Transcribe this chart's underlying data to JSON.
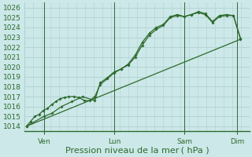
{
  "background_color": "#cce8e8",
  "plot_bg_color": "#cce8e8",
  "grid_color_h": "#aacccc",
  "grid_color_v": "#b8d4d4",
  "line_color": "#2d6a2d",
  "marker_color": "#2d6a2d",
  "vline_color": "#336633",
  "xlabel": "Pression niveau de la mer ( hPa )",
  "xlabel_color": "#2d6a2d",
  "tick_color": "#2d6a2d",
  "ylim": [
    1013.5,
    1026.5
  ],
  "yticks": [
    1014,
    1015,
    1016,
    1017,
    1018,
    1019,
    1020,
    1021,
    1022,
    1023,
    1024,
    1025,
    1026
  ],
  "xtick_labels": [
    "Ven",
    "Lun",
    "Sam",
    "Dim"
  ],
  "xtick_positions": [
    0.5,
    2.5,
    4.5,
    6.0
  ],
  "x_vlines": [
    0.5,
    2.5,
    4.5,
    6.0
  ],
  "xlim": [
    -0.05,
    6.35
  ],
  "n_vgrid": 26,
  "line1_x": [
    0.0,
    0.12,
    0.24,
    0.36,
    0.48,
    0.6,
    0.72,
    0.84,
    0.96,
    1.08,
    1.2,
    1.35,
    1.5,
    1.65,
    1.8,
    1.95,
    2.1,
    2.3,
    2.5,
    2.7,
    2.9,
    3.1,
    3.3,
    3.5,
    3.7,
    3.9,
    4.1,
    4.3,
    4.5,
    4.7,
    4.9,
    5.1,
    5.3,
    5.5,
    5.7,
    5.9,
    6.1
  ],
  "line1_y": [
    1014.0,
    1014.5,
    1015.0,
    1015.2,
    1015.6,
    1015.8,
    1016.2,
    1016.5,
    1016.8,
    1016.9,
    1017.0,
    1017.0,
    1016.9,
    1016.6,
    1016.6,
    1017.0,
    1018.2,
    1018.8,
    1019.4,
    1019.8,
    1020.2,
    1021.0,
    1022.2,
    1023.2,
    1023.8,
    1024.2,
    1025.0,
    1025.2,
    1025.1,
    1025.3,
    1025.5,
    1025.3,
    1024.5,
    1025.1,
    1025.2,
    1025.2,
    1022.8
  ],
  "line2_x": [
    0.0,
    0.5,
    0.72,
    1.0,
    1.3,
    1.6,
    1.95,
    2.1,
    2.3,
    2.5,
    2.7,
    2.9,
    3.1,
    3.3,
    3.5,
    3.7,
    3.9,
    4.1,
    4.3,
    4.5,
    4.7,
    4.9,
    5.1,
    5.3,
    5.5,
    5.7,
    5.9,
    6.1
  ],
  "line2_y": [
    1014.0,
    1015.0,
    1015.3,
    1016.0,
    1016.5,
    1017.0,
    1016.6,
    1018.4,
    1018.9,
    1019.5,
    1019.8,
    1020.3,
    1021.2,
    1022.5,
    1023.4,
    1024.0,
    1024.3,
    1025.1,
    1025.3,
    1025.1,
    1025.3,
    1025.6,
    1025.4,
    1024.6,
    1025.2,
    1025.3,
    1025.2,
    1022.9
  ],
  "trend_x": [
    0.0,
    6.1
  ],
  "trend_y": [
    1014.0,
    1022.8
  ],
  "xlabel_fontsize": 8,
  "tick_fontsize": 6.5
}
